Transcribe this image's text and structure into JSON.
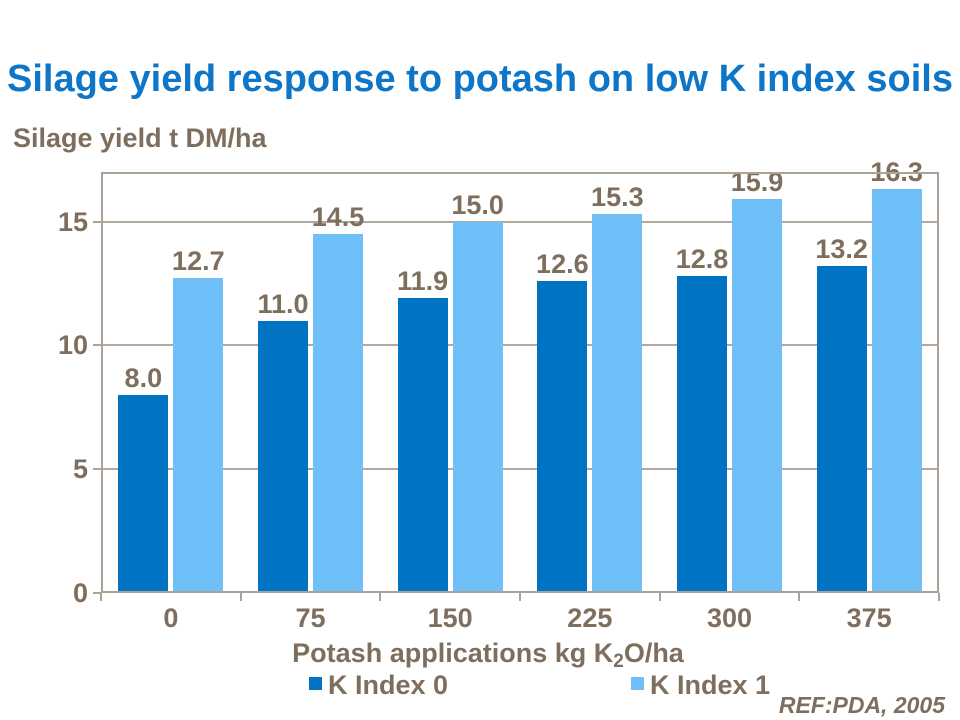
{
  "slide": {
    "title": "Silage yield response to potash on low K index soils",
    "y_axis_unit": "Silage yield t DM/ha",
    "reference": "REF:PDA, 2005"
  },
  "chart_data": {
    "type": "bar",
    "title": "Silage yield response to potash on low K index soils",
    "categories": [
      "0",
      "75",
      "150",
      "225",
      "300",
      "375"
    ],
    "series": [
      {
        "name": "K Index 0",
        "color": "#0073C2",
        "values": [
          8.0,
          11.0,
          11.9,
          12.6,
          12.8,
          13.2
        ]
      },
      {
        "name": "K Index 1",
        "color": "#6FC0F8",
        "values": [
          12.7,
          14.5,
          15.0,
          15.3,
          15.9,
          16.3
        ]
      }
    ],
    "xlabel": {
      "prefix": "Potash applications kg K",
      "sub": "2",
      "suffix": "O/ha"
    },
    "ylabel": "Silage yield t DM/ha",
    "yticks": [
      0,
      5,
      10,
      15
    ],
    "ylim": [
      0,
      17
    ],
    "grid": true,
    "legend_position": "bottom",
    "data_labels": true,
    "data_label_decimals": 1
  },
  "colors": {
    "title_blue": "#0E76C8",
    "series0_blue": "#0073C2",
    "series1_blue": "#6FC0F8",
    "label_taupe": "#7E6E5E",
    "line_taupe": "#ACA296",
    "grid_taupe": "#B2A99C",
    "background": "#FFFFFF"
  }
}
